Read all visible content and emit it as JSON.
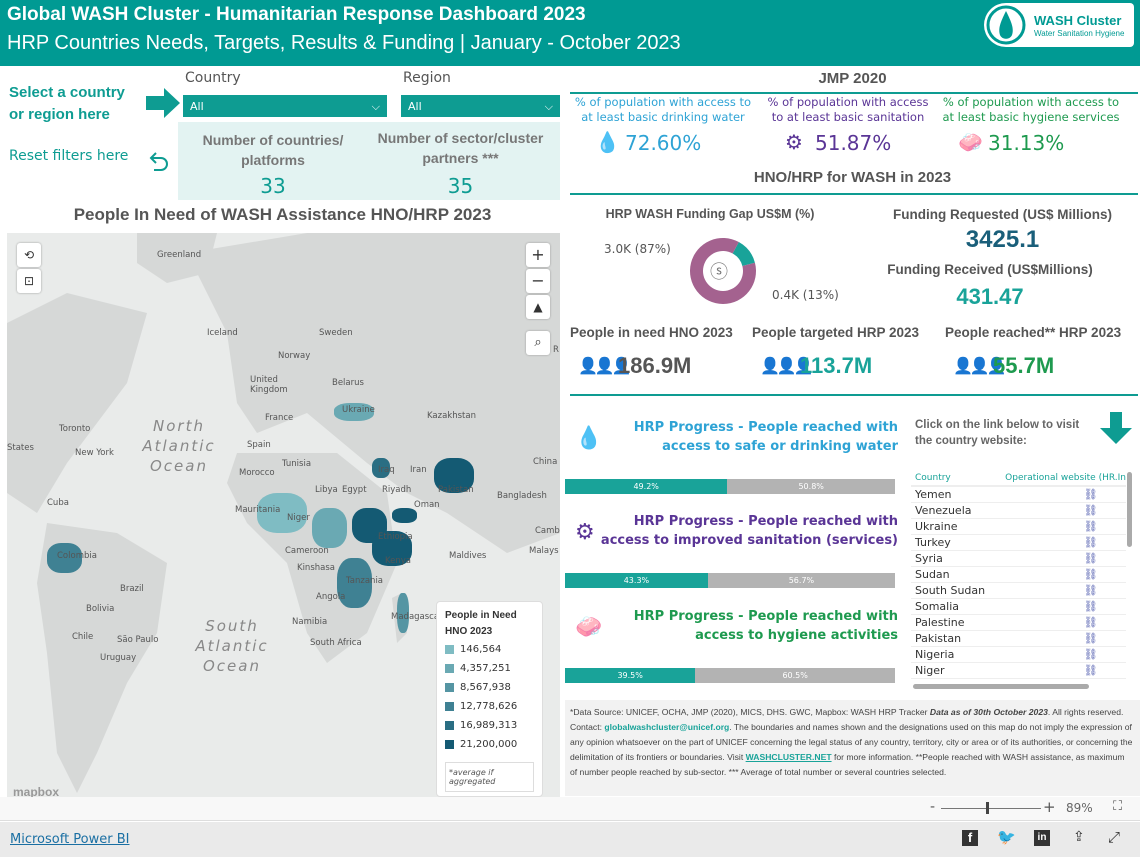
{
  "header": {
    "title": "Global WASH Cluster - Humanitarian Response Dashboard 2023",
    "subtitle": "HRP Countries Needs, Targets, Results & Funding  |  January - October 2023",
    "logo_title": "WASH Cluster",
    "logo_sub": "Water Sanitation Hygiene"
  },
  "filters": {
    "prompt": "Select a country or region here",
    "reset": "Reset filters here",
    "country_label": "Country",
    "country_value": "All",
    "region_label": "Region",
    "region_value": "All"
  },
  "counts": {
    "countries_label": "Number of countries/ platforms",
    "countries_value": "33",
    "partners_label": "Number of sector/cluster partners ***",
    "partners_value": "35"
  },
  "map": {
    "title": "People In Need of WASH Assistance HNO/HRP 2023",
    "labels": [
      "Greenland",
      "Iceland",
      "Sweden",
      "Norway",
      "United Kingdom",
      "Belarus",
      "Ukraine",
      "Kazakhstan",
      "France",
      "Spain",
      "Toronto",
      "New York",
      "Morocco",
      "Tunisia",
      "Libya",
      "Egypt",
      "Iraq",
      "Iran",
      "Riyadh",
      "Oman",
      "Pakistan",
      "Bangladesh",
      "China",
      "Mauritania",
      "Niger",
      "Cuba",
      "Colombia",
      "Cameroon",
      "Ethiopia",
      "Kenya",
      "Kinshasa",
      "Tanzania",
      "Maldives",
      "Brazil",
      "Bolivia",
      "Angola",
      "Namibia",
      "Madagascar",
      "South Africa",
      "Chile",
      "São Paulo",
      "Uruguay",
      "States",
      "Cambo",
      "Malays",
      "R"
    ],
    "oceans": [
      "North Atlantic Ocean",
      "South Atlantic Ocean"
    ],
    "legend": {
      "title": "People in Need HNO 2023",
      "items": [
        {
          "value": "146,564",
          "color": "#7fbcc3"
        },
        {
          "value": "4,357,251",
          "color": "#6aa9b3"
        },
        {
          "value": "8,567,938",
          "color": "#5595a3"
        },
        {
          "value": "12,778,626",
          "color": "#3f8193"
        },
        {
          "value": "16,989,313",
          "color": "#2a6e83"
        },
        {
          "value": "21,200,000",
          "color": "#145a73"
        }
      ],
      "note": "*average if aggregated"
    },
    "attribution": "mapbox"
  },
  "jmp": {
    "title": "JMP 2020",
    "items": [
      {
        "label": "% of population with access to at least basic drinking water",
        "value": "72.60%",
        "color": "#2ea3d5",
        "icon": "water-glass-icon"
      },
      {
        "label": "% of population with access to at least basic sanitation",
        "value": "51.87%",
        "color": "#5a3596",
        "icon": "toilet-icon"
      },
      {
        "label": "% of population with access to at least basic hygiene services",
        "value": "31.13%",
        "color": "#1e9a4f",
        "icon": "handwashing-icon"
      }
    ]
  },
  "hno": {
    "title": "HNO/HRP for WASH in 2023",
    "gap_title": "HRP WASH Funding Gap US$M (%)",
    "gap_label": "3.0K (87%)",
    "received_label": "0.4K (13%)",
    "gap_pct": 87,
    "received_pct": 13,
    "gap_color": "#a4628f",
    "received_color": "#19a399",
    "requested_label": "Funding Requested (US$ Millions)",
    "requested_value": "3425.1",
    "received_funding_label": "Funding Received (US$Millions)",
    "received_funding_value": "431.47",
    "people": [
      {
        "label": "People in need HNO 2023",
        "value": "186.9M",
        "color": "#555"
      },
      {
        "label": "People targeted HRP 2023",
        "value": "113.7M",
        "color": "#19a399"
      },
      {
        "label": "People reached** HRP 2023",
        "value": "55.7M",
        "color": "#1e9a4f"
      }
    ]
  },
  "progress": [
    {
      "title": "HRP Progress - People reached with access to safe or drinking water",
      "color": "#2ea3d5",
      "done": "49.2%",
      "rest": "50.8%",
      "pct": 49.2
    },
    {
      "title": "HRP Progress - People reached with access to improved sanitation (services)",
      "color": "#5a3596",
      "done": "43.3%",
      "rest": "56.7%",
      "pct": 43.3
    },
    {
      "title": "HRP Progress - People reached with access to hygiene activities",
      "color": "#1e9a4f",
      "done": "39.5%",
      "rest": "60.5%",
      "pct": 39.5
    }
  ],
  "links": {
    "intro": "Click on the link below to visit the country website:",
    "col_country": "Country",
    "col_site": "Operational website (HR.In",
    "countries": [
      "Yemen",
      "Venezuela",
      "Ukraine",
      "Turkey",
      "Syria",
      "Sudan",
      "South Sudan",
      "Somalia",
      "Palestine",
      "Pakistan",
      "Nigeria",
      "Niger"
    ]
  },
  "note": {
    "p1": "*Data Source: UNICEF, OCHA, JMP (2020), MICS, DHS. GWC, Mapbox: WASH HRP Tracker ",
    "p1b": "Data as of 30th  October 2023",
    "p2": ". All rights reserved. Contact: ",
    "email": "globalwashcluster@unicef.org",
    "p3": ". The boundaries and names shown and the designations used on this map do not imply the expression of any opinion whatsoever on the part of UNICEF concerning the legal status of any country, territory, city or area or of its authorities, or concerning the delimitation of its frontiers or boundaries.  Visit ",
    "site": "WASHCLUSTER.NET",
    "p4": " for more information. **People reached with WASH assistance, as maximum of number people reached by sub-sector. *** Average of total number or several countries selected."
  },
  "zoom": {
    "minus": "-",
    "plus": "+",
    "value": "89%",
    "level": 0.45
  },
  "footer": {
    "brand": "Microsoft Power BI"
  }
}
